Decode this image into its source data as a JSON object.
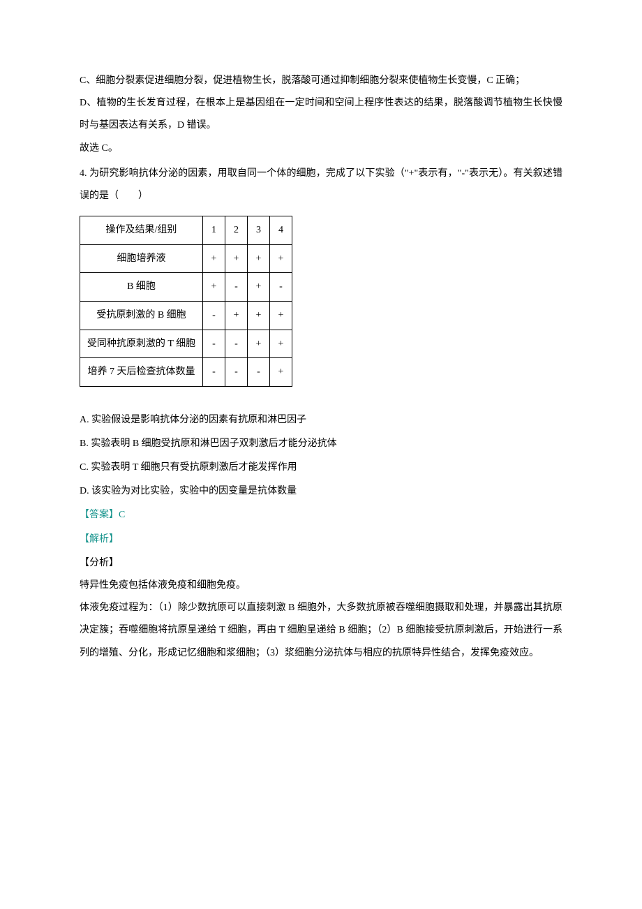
{
  "colors": {
    "text": "#000000",
    "answer_teal": "#16938c",
    "background": "#ffffff",
    "border": "#000000"
  },
  "typography": {
    "body_font_size": 14,
    "line_height": 2.3,
    "font_family": "SimSun"
  },
  "passages": {
    "p1": "C、细胞分裂素促进细胞分裂，促进植物生长，脱落酸可通过抑制细胞分裂来使植物生长变慢，C 正确；",
    "p2": "D、植物的生长发育过程，在根本上是基因组在一定时间和空间上程序性表达的结果，脱落酸调节植物生长快慢时与基因表达有关系，D 错误。",
    "p3": "故选 C。",
    "q4_intro": "4. 为研究影响抗体分泌的因素，用取自同一个体的细胞，完成了以下实验（\"+\"表示有，\"-\"表示无）。有关叙述错误的是（　　）"
  },
  "table": {
    "header": [
      "操作及结果/组别",
      "1",
      "2",
      "3",
      "4"
    ],
    "rows": [
      {
        "label": "细胞培养液",
        "cells": [
          "+",
          "+",
          "+",
          "+"
        ]
      },
      {
        "label": "B 细胞",
        "cells": [
          "+",
          "-",
          "+",
          "-"
        ]
      },
      {
        "label": "受抗原刺激的 B 细胞",
        "cells": [
          "-",
          "+",
          "+",
          "+"
        ]
      },
      {
        "label": "受同种抗原刺激的 T 细胞",
        "cells": [
          "-",
          "-",
          "+",
          "+"
        ]
      },
      {
        "label": "培养 7 天后检查抗体数量",
        "cells": [
          "-",
          "-",
          "-",
          "+"
        ]
      }
    ],
    "styling": {
      "label_col_width": 176,
      "data_col_width": 32,
      "border_color": "#000000",
      "cell_padding": 10
    }
  },
  "options": {
    "a": "A. 实验假设是影响抗体分泌的因素有抗原和淋巴因子",
    "b": "B. 实验表明 B 细胞受抗原和淋巴因子双刺激后才能分泌抗体",
    "c": "C. 实验表明 T 细胞只有受抗原刺激后才能发挥作用",
    "d": "D. 该实验为对比实验，实验中的因变量是抗体数量"
  },
  "answer": {
    "label": "【答案】",
    "value": "C",
    "analysis_label": "【解析】",
    "sub_label": "【分析】"
  },
  "analysis": {
    "line1": "特异性免疫包括体液免疫和细胞免疫。",
    "line2": "体液免疫过程为：（1）除少数抗原可以直接刺激 B 细胞外，大多数抗原被吞噬细胞摄取和处理，并暴露出其抗原决定簇；吞噬细胞将抗原呈递给 T 细胞，再由 T 细胞呈递给 B 细胞；（2）B 细胞接受抗原刺激后，开始进行一系列的增殖、分化，形成记忆细胞和浆细胞；（3）浆细胞分泌抗体与相应的抗原特异性结合，发挥免疫效应。"
  }
}
